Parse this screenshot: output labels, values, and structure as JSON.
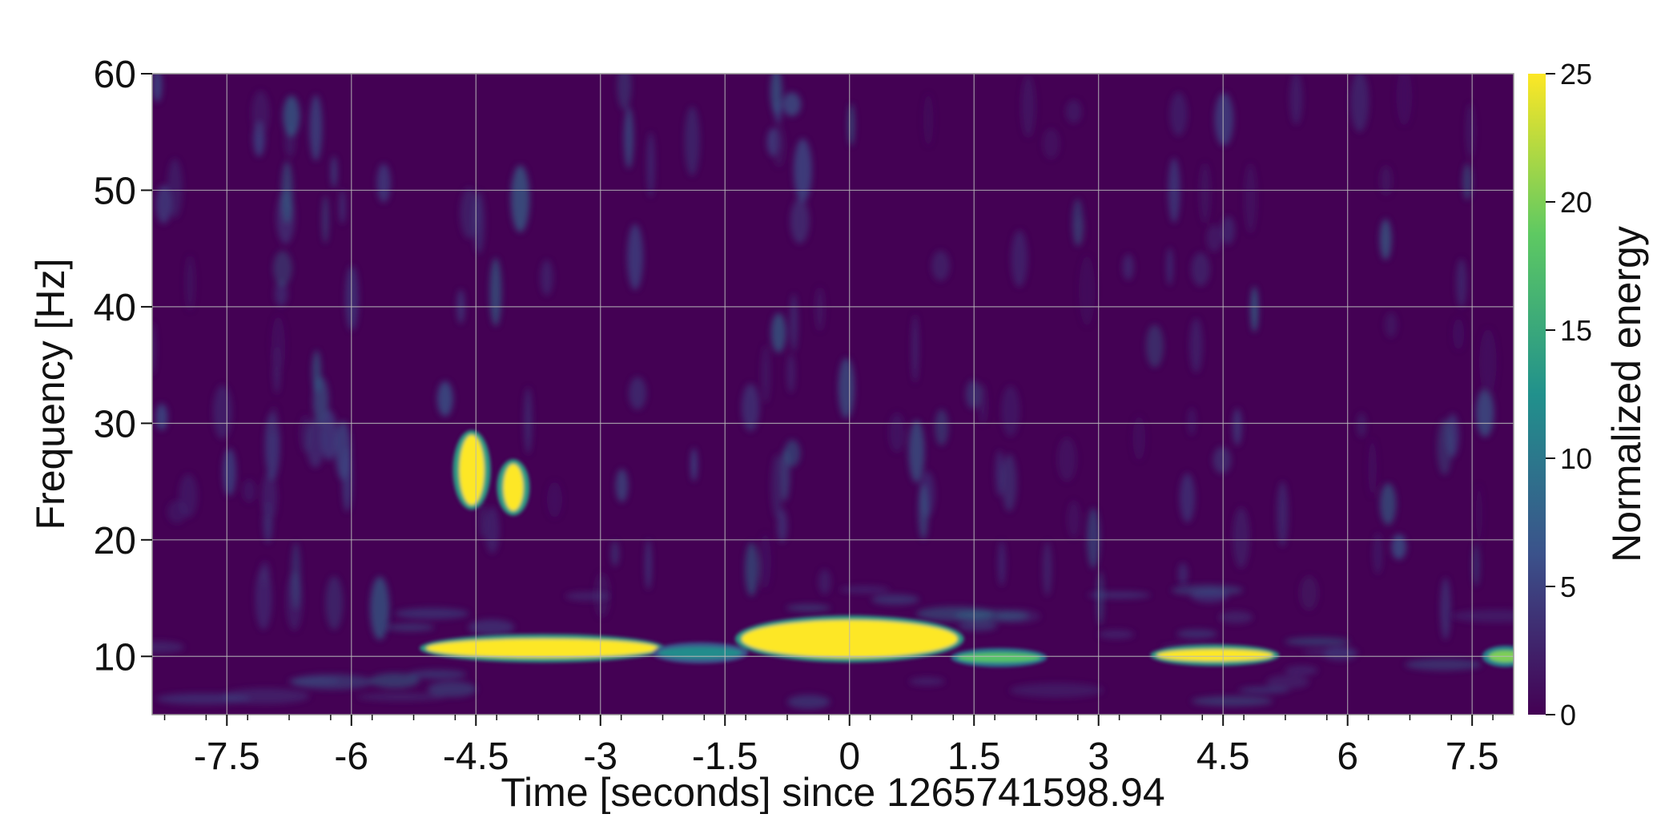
{
  "chart_data": {
    "type": "heatmap",
    "xlabel": "Time [seconds] since 1265741598.94",
    "ylabel": "Frequency [Hz]",
    "xlim": [
      -8.4,
      8.0
    ],
    "ylim": [
      5,
      60
    ],
    "xticks": [
      -7.5,
      -6,
      -4.5,
      -3,
      -1.5,
      0,
      1.5,
      3,
      4.5,
      6,
      7.5
    ],
    "xtick_labels": [
      "-7.5",
      "-6",
      "-4.5",
      "-3",
      "-1.5",
      "0",
      "1.5",
      "3",
      "4.5",
      "6",
      "7.5"
    ],
    "yticks": [
      10,
      20,
      30,
      40,
      50,
      60
    ],
    "ytick_labels": [
      "10",
      "20",
      "30",
      "40",
      "50",
      "60"
    ],
    "grid": true,
    "colorbar": {
      "label": "Normalized energy",
      "range": [
        0,
        25
      ],
      "ticks": [
        0,
        5,
        10,
        15,
        20,
        25
      ],
      "tick_labels": [
        "0",
        "5",
        "10",
        "15",
        "20",
        "25"
      ],
      "colormap": "viridis",
      "colors": [
        "#440154",
        "#3b528b",
        "#21918c",
        "#5ec962",
        "#fde725"
      ]
    },
    "background_energy": 1.5,
    "hot_regions": [
      {
        "t": -4.55,
        "f": 26.0,
        "t_width": 0.15,
        "f_width": 3.0,
        "energy": 25
      },
      {
        "t": -4.05,
        "f": 24.5,
        "t_width": 0.12,
        "f_width": 2.0,
        "energy": 25
      },
      {
        "t": -3.7,
        "f": 10.7,
        "t_width": 1.4,
        "f_width": 0.8,
        "energy": 25
      },
      {
        "t": 0.0,
        "f": 11.5,
        "t_width": 1.3,
        "f_width": 1.6,
        "energy": 25
      },
      {
        "t": 4.4,
        "f": 10.1,
        "t_width": 0.7,
        "f_width": 0.5,
        "energy": 25
      },
      {
        "t": 1.8,
        "f": 9.9,
        "t_width": 0.5,
        "f_width": 0.4,
        "energy": 18
      },
      {
        "t": -1.8,
        "f": 10.3,
        "t_width": 0.5,
        "f_width": 0.5,
        "energy": 12
      },
      {
        "t": 7.9,
        "f": 10.0,
        "t_width": 0.2,
        "f_width": 0.5,
        "energy": 20
      }
    ]
  }
}
